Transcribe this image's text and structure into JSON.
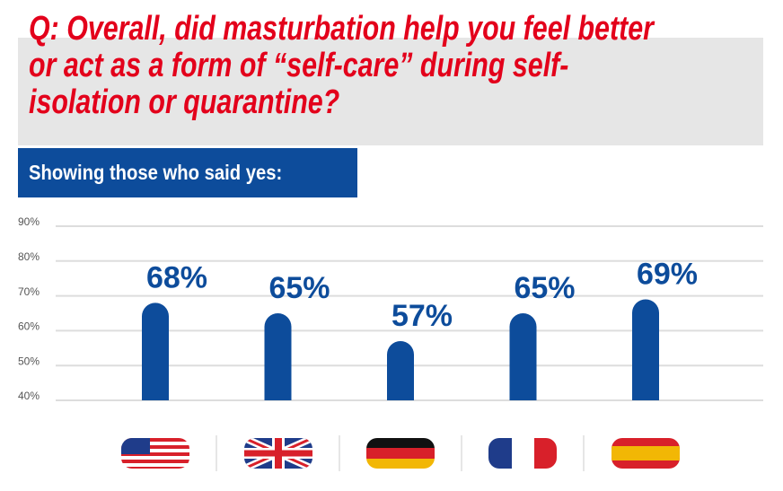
{
  "chart_data": {
    "type": "bar",
    "title": "Q: Overall, did masturbation help you feel better or act as a form of “self-care” during self-isolation or quarantine?",
    "subtitle": "Showing those who said yes:",
    "categories": [
      null,
      null,
      null,
      null,
      null
    ],
    "values": [
      68,
      65,
      57,
      65,
      69
    ],
    "value_labels": [
      "68%",
      "65%",
      "57%",
      "65%",
      "69%"
    ],
    "color": "#0d4c9b",
    "ylim": [
      40,
      90
    ],
    "yticks": [
      {
        "value": 40,
        "label": "40%"
      },
      {
        "value": 50,
        "label": "50%"
      },
      {
        "value": 60,
        "label": "60%"
      },
      {
        "value": 70,
        "label": "70%"
      },
      {
        "value": 80,
        "label": "80%"
      },
      {
        "value": 90,
        "label": "90%"
      }
    ],
    "grid": true
  }
}
